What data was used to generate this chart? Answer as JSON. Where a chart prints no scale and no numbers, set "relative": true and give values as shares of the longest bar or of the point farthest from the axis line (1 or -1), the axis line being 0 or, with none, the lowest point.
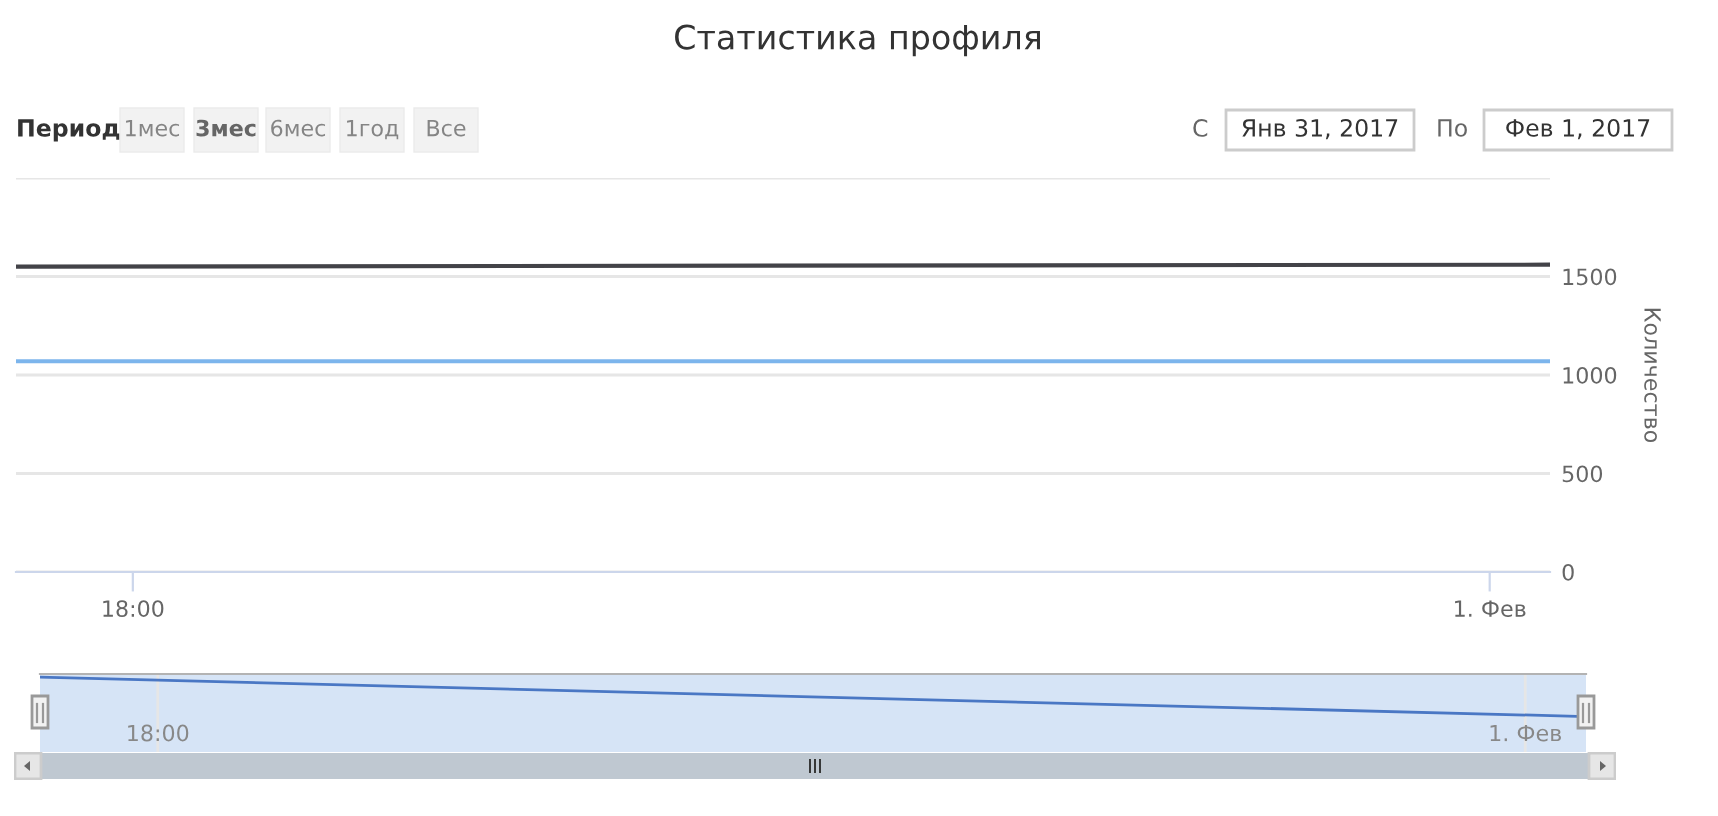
{
  "chart_data": [
    {
      "type": "line",
      "title": "Статистика профиля",
      "ylabel": "Количество",
      "annotations": [
        "Период",
        "1мес",
        "3мес",
        "6мес",
        "1год",
        "Все",
        "С",
        "Янв 31, 2017",
        "По",
        "Фев 1, 2017"
      ],
      "x": [
        "2017-01-31T17:29",
        "2017-02-01T00:16"
      ],
      "series": [
        {
          "color": "#7cb5ec",
          "values": [
            1070,
            1070
          ]
        },
        {
          "color": "#434348",
          "values": [
            1550,
            1560
          ]
        }
      ],
      "xlim": [
        "2017-01-31T17:29",
        "2017-02-01T00:16"
      ],
      "xticks": [
        {
          "value": "2017-01-31T18:00",
          "label": "18:00"
        },
        {
          "value": "2017-02-01T00:00",
          "label": "1. Фев"
        }
      ],
      "ylim": [
        0,
        2000
      ],
      "yticks": [
        0,
        500,
        1000,
        1500,
        {
          "value": 2000,
          "label": null
        }
      ],
      "grid": "y"
    },
    {
      "type": "line",
      "relative": true,
      "x": [
        "2017-01-31T17:29",
        "2017-02-01T00:16"
      ],
      "series": [
        {
          "color": "#4a77c4",
          "values": [
            1,
            0
          ]
        }
      ],
      "xlim": [
        "2017-01-31T17:29",
        "2017-02-01T00:16"
      ],
      "xticks": [
        {
          "value": "2017-01-31T18:00",
          "label": "18:00"
        },
        {
          "value": "2017-02-01T00:00",
          "label": "1. Фев"
        }
      ],
      "grid": "x",
      "tick_labels": "x",
      "bands": [
        {
          "axis": "x",
          "from": "2017-01-31T17:29",
          "to": "2017-02-01T00:16",
          "color": "#d6e4f6"
        }
      ]
    }
  ]
}
